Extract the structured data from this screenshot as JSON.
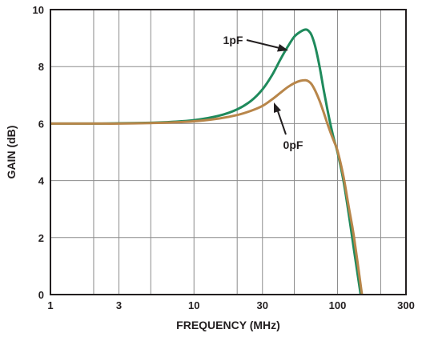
{
  "chart_data": {
    "type": "line",
    "xlabel": "FREQUENCY (MHz)",
    "ylabel": "GAIN (dB)",
    "x_scale": "log",
    "xlim": [
      1,
      300
    ],
    "ylim": [
      0,
      10
    ],
    "x_ticks": [
      1,
      3,
      10,
      30,
      100,
      300
    ],
    "x_tick_labels": [
      "1",
      "3",
      "10",
      "30",
      "100",
      "300"
    ],
    "x_gridlines": [
      1,
      2,
      3,
      5,
      10,
      20,
      30,
      50,
      100,
      200,
      300
    ],
    "y_ticks": [
      0,
      2,
      4,
      6,
      8,
      10
    ],
    "y_tick_labels": [
      "0",
      "2",
      "4",
      "6",
      "8",
      "10"
    ],
    "y_gridlines": [
      0,
      2,
      4,
      6,
      8,
      10
    ],
    "grid": true,
    "series": [
      {
        "name": "1pF",
        "color": "#1f8a5c",
        "x": [
          1,
          2,
          3,
          5,
          7,
          10,
          15,
          20,
          25,
          30,
          35,
          40,
          45,
          50,
          55,
          60,
          63,
          66,
          70,
          75,
          80,
          85,
          90,
          95,
          100,
          110,
          120,
          130,
          145
        ],
        "y": [
          6.0,
          6.0,
          6.01,
          6.03,
          6.06,
          6.12,
          6.28,
          6.5,
          6.8,
          7.2,
          7.7,
          8.25,
          8.7,
          9.05,
          9.22,
          9.3,
          9.25,
          9.1,
          8.7,
          8.0,
          7.2,
          6.5,
          5.9,
          5.4,
          5.0,
          4.0,
          2.8,
          1.6,
          0
        ]
      },
      {
        "name": "0pF",
        "color": "#b8864a",
        "x": [
          1,
          2,
          3,
          5,
          7,
          10,
          15,
          20,
          25,
          30,
          35,
          40,
          45,
          50,
          55,
          60,
          63,
          66,
          70,
          75,
          80,
          85,
          90,
          95,
          100,
          110,
          120,
          130,
          148
        ],
        "y": [
          6.0,
          6.0,
          6.0,
          6.02,
          6.04,
          6.08,
          6.18,
          6.3,
          6.45,
          6.62,
          6.85,
          7.08,
          7.28,
          7.42,
          7.5,
          7.52,
          7.48,
          7.38,
          7.15,
          6.8,
          6.4,
          6.0,
          5.65,
          5.35,
          5.05,
          4.15,
          3.05,
          2.05,
          0
        ]
      }
    ],
    "annotations": [
      {
        "text": "1pF",
        "series": "1pF"
      },
      {
        "text": "0pF",
        "series": "0pF"
      }
    ]
  }
}
